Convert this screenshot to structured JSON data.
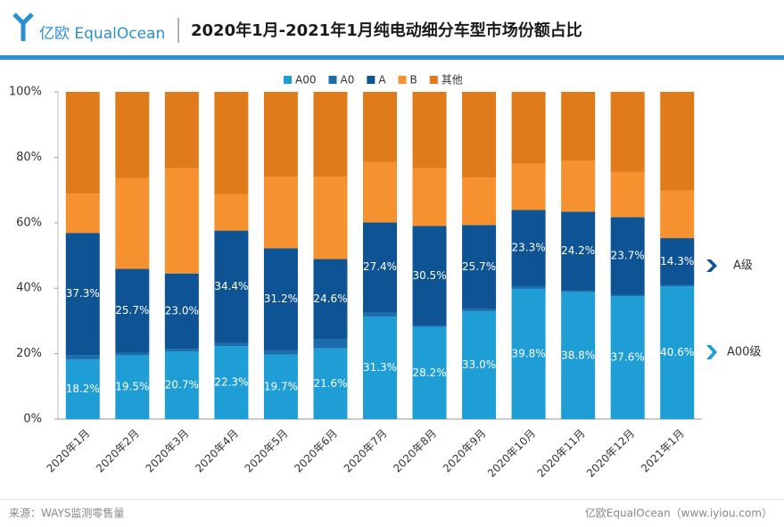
{
  "header": {
    "logo": "亿欧 EqualOcean"
  },
  "footer": {
    "source": "来源：WAYS监测零售量",
    "brand": "亿欧EqualOcean（www.iyiou.com）"
  },
  "chart_data": {
    "type": "stacked_bar",
    "title": "2020年1月-2021年1月纯电动细分车型市场份额占比",
    "categories": [
      "2020年1月",
      "2020年2月",
      "2020年3月",
      "2020年4月",
      "2020年5月",
      "2020年6月",
      "2020年7月",
      "2020年8月",
      "2020年9月",
      "2020年10月",
      "2020年11月",
      "2020年12月",
      "2021年1月"
    ],
    "series": [
      {
        "name": "A00",
        "color": "#1f9ed6",
        "values": [
          18.2,
          19.5,
          20.7,
          22.3,
          19.7,
          21.6,
          31.3,
          28.2,
          33.0,
          39.8,
          38.8,
          37.6,
          40.6
        ],
        "value_labels": [
          "18.2%",
          "19.5%",
          "20.7%",
          "22.3%",
          "19.7%",
          "21.6%",
          "31.3%",
          "28.2%",
          "33.0%",
          "39.8%",
          "38.8%",
          "37.6%",
          "40.6%"
        ]
      },
      {
        "name": "A0",
        "color": "#1b6dae",
        "values": [
          1.4,
          0.7,
          0.8,
          0.9,
          1.3,
          2.7,
          1.4,
          0.3,
          0.6,
          0.8,
          0.4,
          0.4,
          0.4
        ]
      },
      {
        "name": "A",
        "color": "#0e5494",
        "values": [
          37.3,
          25.7,
          23.0,
          34.4,
          31.2,
          24.6,
          27.4,
          30.5,
          25.7,
          23.3,
          24.2,
          23.7,
          14.3
        ],
        "value_labels": [
          "37.3%",
          "25.7%",
          "23.0%",
          "34.4%",
          "31.2%",
          "24.6%",
          "27.4%",
          "30.5%",
          "25.7%",
          "23.3%",
          "24.2%",
          "23.7%",
          "14.3%"
        ]
      },
      {
        "name": "B",
        "color": "#f5922f",
        "values": [
          12.0,
          27.7,
          32.1,
          11.1,
          21.9,
          25.2,
          18.4,
          17.6,
          14.5,
          14.3,
          15.6,
          13.8,
          14.5
        ]
      },
      {
        "name": "其他",
        "color": "#e07b1b",
        "values": [
          31.1,
          26.4,
          23.4,
          31.3,
          25.9,
          25.9,
          21.5,
          23.4,
          26.2,
          21.8,
          21.0,
          24.5,
          30.2
        ]
      }
    ],
    "ylim": [
      0,
      100
    ],
    "yticks": [
      {
        "value": 0,
        "label": "0%"
      },
      {
        "value": 20,
        "label": "20%"
      },
      {
        "value": 40,
        "label": "40%"
      },
      {
        "value": 60,
        "label": "60%"
      },
      {
        "value": 80,
        "label": "80%"
      },
      {
        "value": 100,
        "label": "100%"
      }
    ],
    "legend": "top",
    "annotations": [
      "A级",
      "A00级"
    ]
  }
}
